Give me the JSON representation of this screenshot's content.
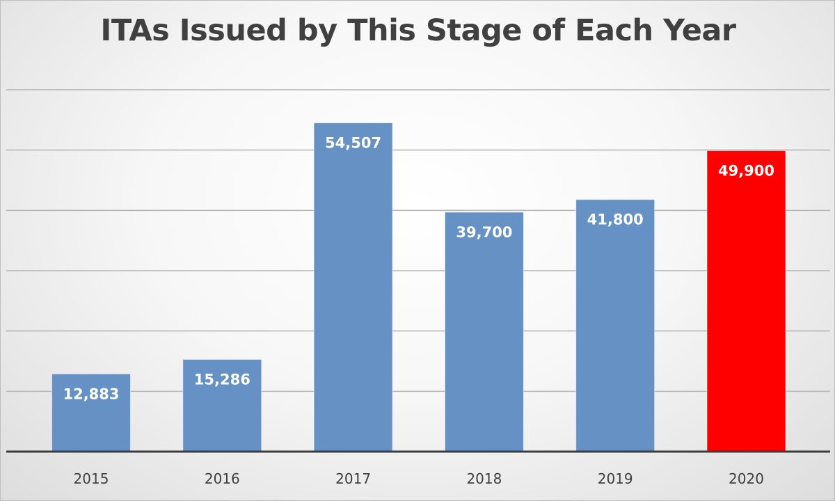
{
  "chart_data": {
    "type": "bar",
    "title": "ITAs Issued by This Stage of Each Year",
    "xlabel": "",
    "ylabel": "",
    "categories": [
      "2015",
      "2016",
      "2017",
      "2018",
      "2019",
      "2020"
    ],
    "series": [
      {
        "values": [
          12883,
          15286,
          54507,
          39700,
          41800,
          49900
        ]
      }
    ],
    "data_labels": [
      "12,883",
      "15,286",
      "54,507",
      "39,700",
      "41,800",
      "49,900"
    ],
    "ylim": [
      0,
      60000
    ],
    "grid": true,
    "gridline_step": 10000,
    "y_tick_labels_shown": false,
    "legend": "none",
    "colors": {
      "default_bar": "#6691c5",
      "highlight_bar": "#ff0000",
      "grid": "#b4b4b4",
      "axis": "#3c3c3c"
    },
    "highlight_category": "2020"
  }
}
